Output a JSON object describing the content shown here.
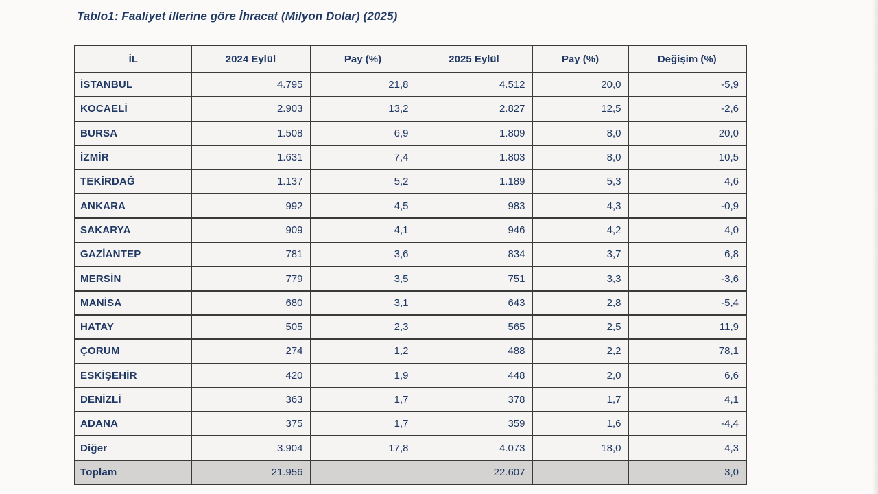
{
  "title": "Tablo1: Faaliyet illerine göre İhracat (Milyon Dolar) (2025)",
  "table": {
    "columns": [
      "İL",
      "2024 Eylül",
      "Pay  (%)",
      "2025 Eylül",
      "Pay  (%)",
      "Değişim (%)"
    ],
    "rows": [
      [
        "İSTANBUL",
        "4.795",
        "21,8",
        "4.512",
        "20,0",
        "-5,9"
      ],
      [
        "KOCAELİ",
        "2.903",
        "13,2",
        "2.827",
        "12,5",
        "-2,6"
      ],
      [
        "BURSA",
        "1.508",
        "6,9",
        "1.809",
        "8,0",
        "20,0"
      ],
      [
        "İZMİR",
        "1.631",
        "7,4",
        "1.803",
        "8,0",
        "10,5"
      ],
      [
        "TEKİRDAĞ",
        "1.137",
        "5,2",
        "1.189",
        "5,3",
        "4,6"
      ],
      [
        "ANKARA",
        "992",
        "4,5",
        "983",
        "4,3",
        "-0,9"
      ],
      [
        "SAKARYA",
        "909",
        "4,1",
        "946",
        "4,2",
        "4,0"
      ],
      [
        "GAZİANTEP",
        "781",
        "3,6",
        "834",
        "3,7",
        "6,8"
      ],
      [
        "MERSİN",
        "779",
        "3,5",
        "751",
        "3,3",
        "-3,6"
      ],
      [
        "MANİSA",
        "680",
        "3,1",
        "643",
        "2,8",
        "-5,4"
      ],
      [
        "HATAY",
        "505",
        "2,3",
        "565",
        "2,5",
        "11,9"
      ],
      [
        "ÇORUM",
        "274",
        "1,2",
        "488",
        "2,2",
        "78,1"
      ],
      [
        "ESKİŞEHİR",
        "420",
        "1,9",
        "448",
        "2,0",
        "6,6"
      ],
      [
        "DENİZLİ",
        "363",
        "1,7",
        "378",
        "1,7",
        "4,1"
      ],
      [
        "ADANA",
        "375",
        "1,7",
        "359",
        "1,6",
        "-4,4"
      ],
      [
        "Diğer",
        "3.904",
        "17,8",
        "4.073",
        "18,0",
        "4,3"
      ]
    ],
    "total_row": [
      "Toplam",
      "21.956",
      "",
      "22.607",
      "",
      "3,0"
    ]
  },
  "colors": {
    "text_navy": "#1F3864",
    "number_navy": "#2a3a6e",
    "cell_background": "#f5f4f2",
    "total_row_background": "#d5d3d1",
    "border": "#3a3a3a",
    "page_background": "#fbfaf9"
  }
}
